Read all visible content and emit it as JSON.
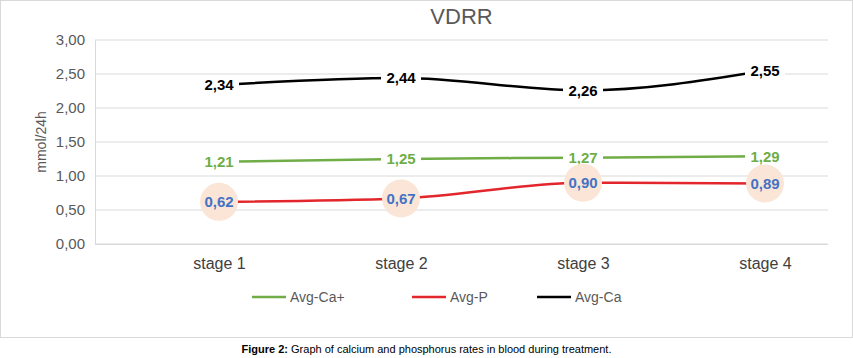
{
  "chart_data": {
    "type": "line",
    "title": "VDRR",
    "y_label": "mmol/24h",
    "caption": "Figure 2: Graph of calcium and phosphorus rates in blood during treatment.",
    "categories": [
      "stage 1",
      "stage 2",
      "stage 3",
      "stage 4"
    ],
    "series": [
      {
        "name": "Avg-Ca+",
        "color": "#70ad47",
        "values": [
          1.21,
          1.25,
          1.27,
          1.29
        ],
        "value_labels": [
          "1,21",
          "1,25",
          "1,27",
          "1,29"
        ]
      },
      {
        "name": "Avg-P",
        "color": "#e3262b",
        "values": [
          0.62,
          0.67,
          0.9,
          0.89
        ],
        "value_labels": [
          "0,62",
          "0,67",
          "0,90",
          "0,89"
        ]
      },
      {
        "name": "Avg-Ca",
        "color": "#000000",
        "values": [
          2.34,
          2.44,
          2.26,
          2.55
        ],
        "value_labels": [
          "2,34",
          "2,44",
          "2,26",
          "2,55"
        ]
      }
    ],
    "ylim": [
      0,
      3
    ],
    "yticks": [
      {
        "value": 0,
        "label": "0,00"
      },
      {
        "value": 0.5,
        "label": "0,50"
      },
      {
        "value": 1,
        "label": "1,00"
      },
      {
        "value": 1.5,
        "label": "1,50"
      },
      {
        "value": 2,
        "label": "2,00"
      },
      {
        "value": 2.5,
        "label": "2,50"
      },
      {
        "value": 3,
        "label": "3,00"
      }
    ],
    "grid": true,
    "data_labels": true,
    "legend": "bottom"
  }
}
